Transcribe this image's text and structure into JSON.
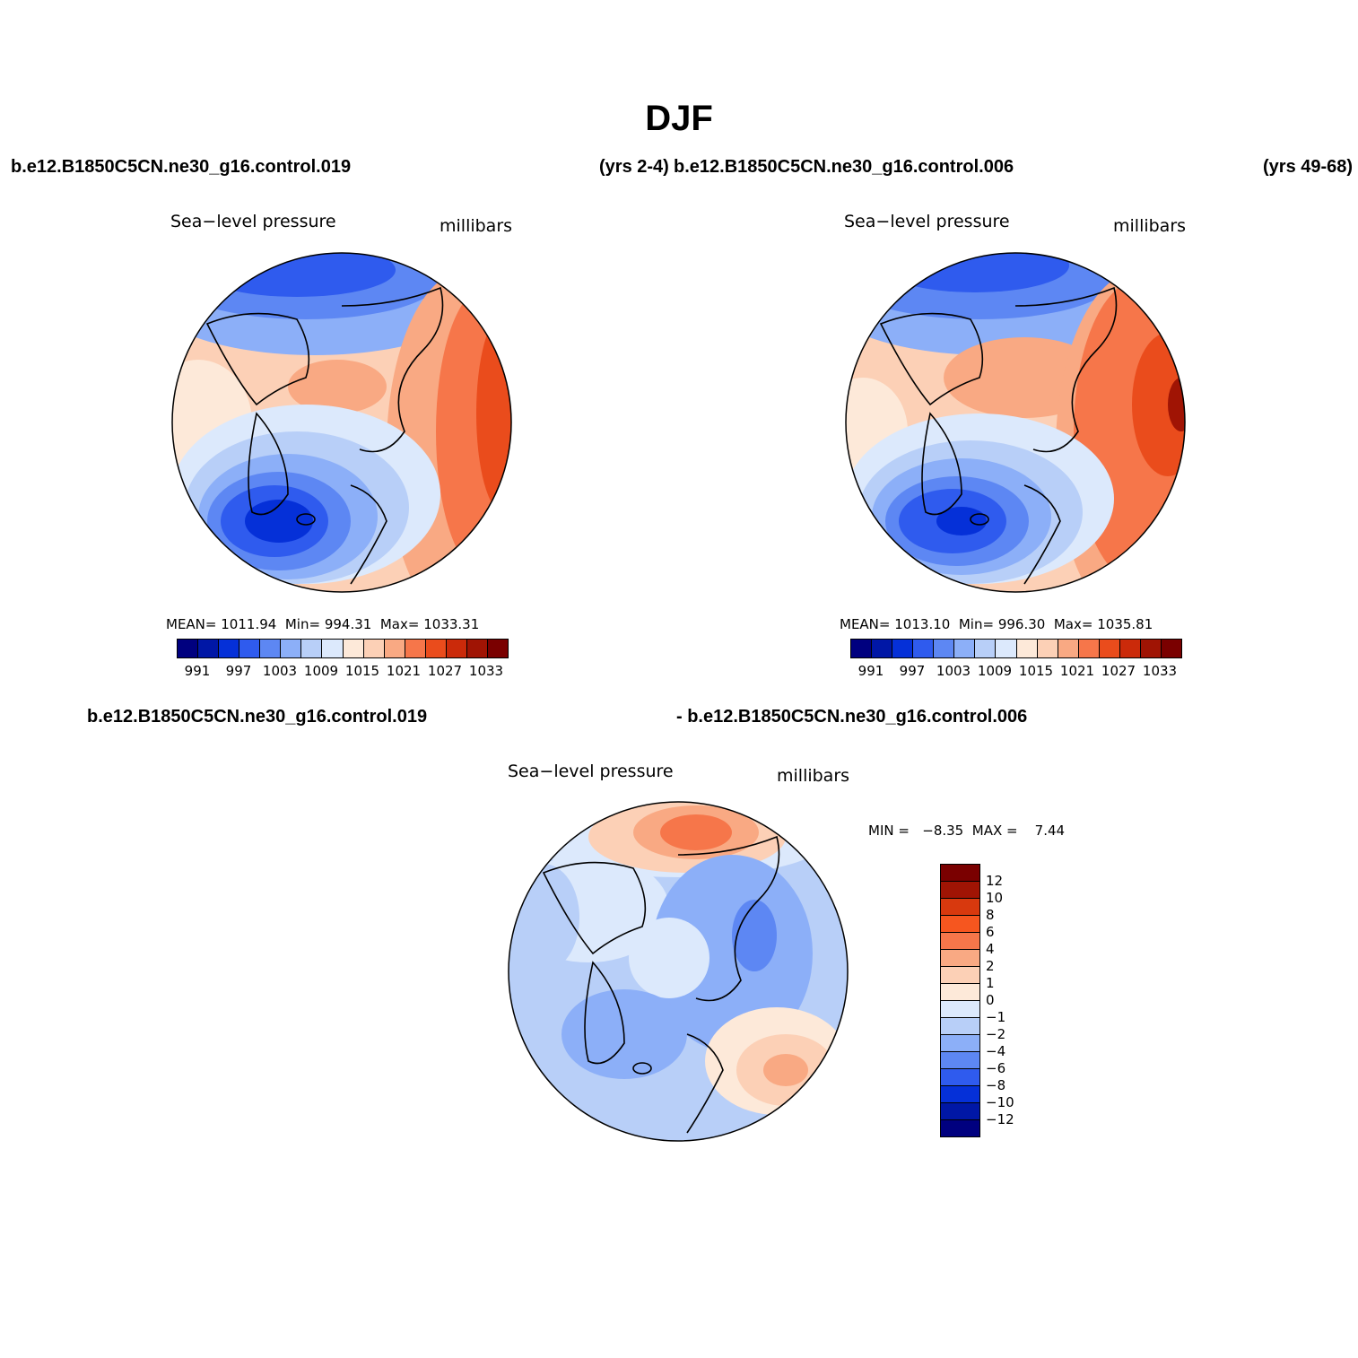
{
  "figure": {
    "title": "DJF",
    "case_a_left": "b.e12.B1850C5CN.ne30_g16.control.019",
    "case_a_years": "(yrs 2-4)",
    "case_b": "b.e12.B1850C5CN.ne30_g16.control.006",
    "case_b_years": "(yrs 49-68)",
    "diff_left": "b.e12.B1850C5CN.ne30_g16.control.019",
    "diff_right": "- b.e12.B1850C5CN.ne30_g16.control.006"
  },
  "chart_data": [
    {
      "type": "heatmap",
      "panel": "case-a",
      "title": "Sea−level pressure",
      "units": "millibars",
      "projection": "polar stereographic (north pole)",
      "stats": {
        "mean_label": "MEAN=",
        "mean": "1011.94",
        "min_label": "Min=",
        "min": "994.31",
        "max_label": "Max=",
        "max": "1033.31"
      },
      "colorbar": {
        "levels": [
          "991",
          "997",
          "1003",
          "1009",
          "1015",
          "1021",
          "1027",
          "1033"
        ],
        "colors": [
          "#00007f",
          "#0017a6",
          "#0530d8",
          "#2f5bee",
          "#5d87f3",
          "#8caff8",
          "#b8cff8",
          "#dce9fc",
          "#fde9d9",
          "#fcd0b6",
          "#f9a983",
          "#f6764a",
          "#ea4c1c",
          "#cb2a0a",
          "#a01404",
          "#7a0000"
        ]
      }
    },
    {
      "type": "heatmap",
      "panel": "case-b",
      "title": "Sea−level pressure",
      "units": "millibars",
      "projection": "polar stereographic (north pole)",
      "stats": {
        "mean_label": "MEAN=",
        "mean": "1013.10",
        "min_label": "Min=",
        "min": "996.30",
        "max_label": "Max=",
        "max": "1035.81"
      },
      "colorbar": {
        "levels": [
          "991",
          "997",
          "1003",
          "1009",
          "1015",
          "1021",
          "1027",
          "1033"
        ],
        "colors": [
          "#00007f",
          "#0017a6",
          "#0530d8",
          "#2f5bee",
          "#5d87f3",
          "#8caff8",
          "#b8cff8",
          "#dce9fc",
          "#fde9d9",
          "#fcd0b6",
          "#f9a983",
          "#f6764a",
          "#ea4c1c",
          "#cb2a0a",
          "#a01404",
          "#7a0000"
        ]
      }
    },
    {
      "type": "heatmap",
      "panel": "difference",
      "title": "Sea−level pressure",
      "units": "millibars",
      "projection": "polar stereographic (north pole)",
      "stats": {
        "min_label": "MIN =",
        "min": "−8.35",
        "max_label": "MAX =",
        "max": "7.44"
      },
      "colorbar": {
        "levels": [
          "12",
          "10",
          "8",
          "6",
          "4",
          "2",
          "1",
          "0",
          "−1",
          "−2",
          "−4",
          "−6",
          "−8",
          "−10",
          "−12"
        ],
        "colors": [
          "#7a0000",
          "#a01404",
          "#d8390e",
          "#f6561f",
          "#f6764a",
          "#f9a983",
          "#fcd0b6",
          "#fde9d9",
          "#dce9fc",
          "#b8cff8",
          "#8caff8",
          "#5d87f3",
          "#2f5bee",
          "#0530d8",
          "#0017a6",
          "#00007f"
        ]
      }
    }
  ],
  "palette": {
    "deep_blue": "#0530d8",
    "blue": "#2f5bee",
    "mid_blue": "#5d87f3",
    "light_blue": "#8caff8",
    "pale_blue": "#b8cff8",
    "paler_blue": "#dce9fc",
    "cream": "#fde9d9",
    "peach": "#fcd0b6",
    "salmon": "#f9a983",
    "orange": "#f6764a",
    "red_orange": "#ea4c1c",
    "dark_red": "#a01404"
  }
}
